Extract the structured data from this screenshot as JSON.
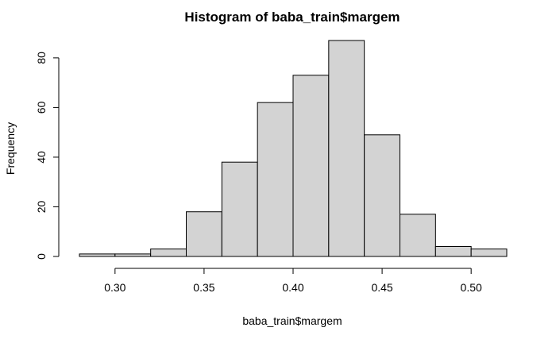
{
  "chart_data": {
    "type": "bar",
    "title": "Histogram of baba_train$margem",
    "xlabel": "baba_train$margem",
    "ylabel": "Frequency",
    "bins": [
      {
        "x0": 0.28,
        "x1": 0.3,
        "count": 1
      },
      {
        "x0": 0.3,
        "x1": 0.32,
        "count": 1
      },
      {
        "x0": 0.32,
        "x1": 0.34,
        "count": 3
      },
      {
        "x0": 0.34,
        "x1": 0.36,
        "count": 18
      },
      {
        "x0": 0.36,
        "x1": 0.38,
        "count": 38
      },
      {
        "x0": 0.38,
        "x1": 0.4,
        "count": 62
      },
      {
        "x0": 0.4,
        "x1": 0.42,
        "count": 73
      },
      {
        "x0": 0.42,
        "x1": 0.44,
        "count": 87
      },
      {
        "x0": 0.44,
        "x1": 0.46,
        "count": 49
      },
      {
        "x0": 0.46,
        "x1": 0.48,
        "count": 17
      },
      {
        "x0": 0.48,
        "x1": 0.5,
        "count": 4
      },
      {
        "x0": 0.5,
        "x1": 0.52,
        "count": 3
      }
    ],
    "xlim": [
      0.28,
      0.52
    ],
    "ylim": [
      0,
      87
    ],
    "xticks": [
      0.3,
      0.35,
      0.4,
      0.45,
      0.5
    ],
    "xtick_labels": [
      "0.30",
      "0.35",
      "0.40",
      "0.45",
      "0.50"
    ],
    "yticks": [
      0,
      20,
      40,
      60,
      80
    ],
    "ytick_labels": [
      "0",
      "20",
      "40",
      "60",
      "80"
    ],
    "bar_fill": "#d3d3d3",
    "bar_stroke": "#000000",
    "grid": false,
    "legend": "none"
  }
}
